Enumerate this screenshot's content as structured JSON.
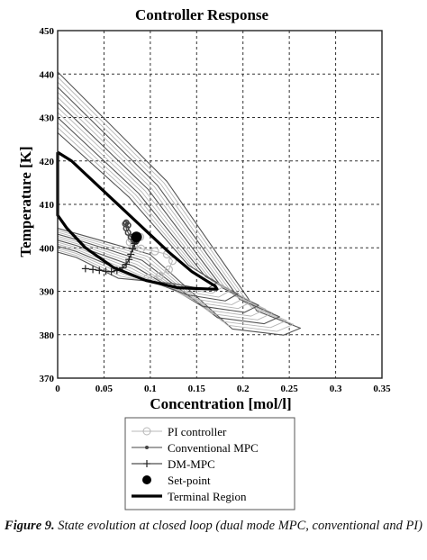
{
  "chart_data": {
    "type": "line",
    "title": "Controller Response",
    "xlabel": "Concentration [mol/l]",
    "ylabel": "Temperature [K]",
    "xlim": [
      0,
      0.35
    ],
    "ylim": [
      370,
      450
    ],
    "xticks": [
      0,
      0.05,
      0.1,
      0.15,
      0.2,
      0.25,
      0.3,
      0.35
    ],
    "xtick_labels": [
      "0",
      "0.05",
      "0.1",
      "0.15",
      "0.2",
      "0.25",
      "0.3",
      "0.35"
    ],
    "yticks": [
      370,
      380,
      390,
      400,
      410,
      420,
      430,
      440,
      450
    ],
    "ytick_labels": [
      "370",
      "380",
      "390",
      "400",
      "410",
      "420",
      "430",
      "440",
      "450"
    ],
    "grid": true,
    "legend_placement": "below",
    "series": [
      {
        "name": "PI controller",
        "marker": "circle-open",
        "color": "#bbbbbb",
        "x": [
          0.097,
          0.11,
          0.12,
          0.124,
          0.118,
          0.105,
          0.09,
          0.082,
          0.078,
          0.08,
          0.084,
          0.087,
          0.089
        ],
        "y": [
          393.0,
          393.5,
          395.0,
          397.0,
          398.5,
          399.2,
          399.8,
          400.5,
          401.3,
          402.0,
          402.3,
          402.5,
          402.5
        ]
      },
      {
        "name": "Conventional MPC",
        "marker": "dot-line",
        "color": "#444444",
        "x": [
          0.076,
          0.074,
          0.073,
          0.074,
          0.076,
          0.079,
          0.082,
          0.084,
          0.085,
          0.086,
          0.086,
          0.085
        ],
        "y": [
          405.2,
          405.8,
          405.5,
          404.5,
          403.5,
          402.5,
          401.8,
          401.4,
          401.6,
          402.0,
          402.4,
          402.8
        ]
      },
      {
        "name": "DM-MPC",
        "marker": "plus",
        "color": "#222222",
        "x": [
          0.03,
          0.038,
          0.045,
          0.052,
          0.058,
          0.064,
          0.07,
          0.074,
          0.077,
          0.079,
          0.081,
          0.083,
          0.085
        ],
        "y": [
          395.2,
          395.0,
          394.8,
          394.6,
          394.5,
          394.8,
          395.4,
          396.2,
          397.3,
          398.5,
          399.8,
          401.0,
          402.0
        ]
      },
      {
        "name": "Set-point",
        "marker": "filled-circle",
        "color": "#000000",
        "x": [
          0.085
        ],
        "y": [
          402.5
        ]
      },
      {
        "name": "Terminal Region",
        "marker": "none",
        "color": "#000000",
        "x": [
          0,
          0.015,
          0.035,
          0.06,
          0.09,
          0.12,
          0.145,
          0.16,
          0.17,
          0.172,
          0.165,
          0.13,
          0.095,
          0.06,
          0.03,
          0.01,
          0,
          0
        ],
        "y": [
          422,
          420,
          416,
          411,
          405,
          399,
          394.5,
          392.5,
          391.2,
          390.5,
          390.5,
          390.8,
          392.5,
          395.5,
          400,
          404.5,
          407.5,
          422
        ]
      }
    ]
  },
  "legend": {
    "items": [
      {
        "label": "PI controller",
        "icon": "circle-open-line-icon"
      },
      {
        "label": "Conventional MPC",
        "icon": "dot-line-icon"
      },
      {
        "label": "DM-MPC",
        "icon": "plus-line-icon"
      },
      {
        "label": "Set-point",
        "icon": "filled-circle-icon"
      },
      {
        "label": "Terminal Region",
        "icon": "thick-line-icon"
      }
    ]
  },
  "caption": {
    "label": "Figure 9.",
    "text": "State evolution at closed loop (dual mode MPC, conventional and PI)"
  },
  "colors": {
    "contour_dark": "#555555",
    "contour_light": "#b5b5b5",
    "grid": "#333333"
  }
}
